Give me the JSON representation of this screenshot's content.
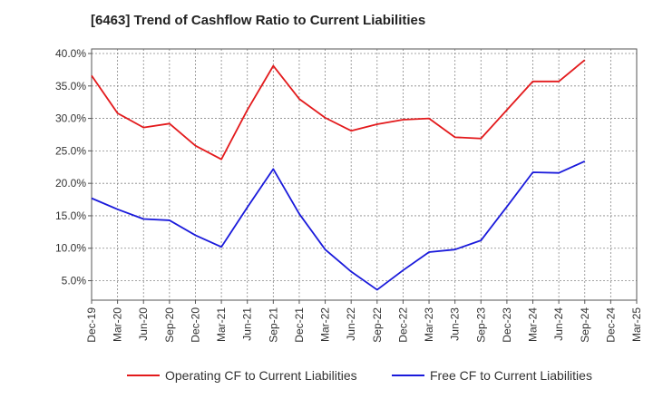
{
  "chart_data": {
    "type": "line",
    "title": "[6463]  Trend of Cashflow Ratio to Current Liabilities",
    "xlabel": "",
    "ylabel": "",
    "categories": [
      "Dec-19",
      "Mar-20",
      "Jun-20",
      "Sep-20",
      "Dec-20",
      "Mar-21",
      "Jun-21",
      "Sep-21",
      "Dec-21",
      "Mar-22",
      "Jun-22",
      "Sep-22",
      "Dec-22",
      "Mar-23",
      "Jun-23",
      "Sep-23",
      "Dec-23",
      "Mar-24",
      "Jun-24",
      "Sep-24",
      "Dec-24",
      "Mar-25"
    ],
    "ylim": [
      2.0,
      40.7
    ],
    "yticks": [
      5.0,
      10.0,
      15.0,
      20.0,
      25.0,
      30.0,
      35.0,
      40.0
    ],
    "ytick_labels": [
      "5.0%",
      "10.0%",
      "15.0%",
      "20.0%",
      "25.0%",
      "30.0%",
      "35.0%",
      "40.0%"
    ],
    "grid": true,
    "legend_position": "bottom",
    "series": [
      {
        "name": "Operating CF to Current Liabilities",
        "color": "#e31a1c",
        "values": [
          36.6,
          30.8,
          28.6,
          29.2,
          25.8,
          23.7,
          31.3,
          38.1,
          33.0,
          30.1,
          28.1,
          29.1,
          29.8,
          30.0,
          27.1,
          26.9,
          31.3,
          35.7,
          35.7,
          39.0,
          null,
          null
        ]
      },
      {
        "name": "Free CF to Current Liabilities",
        "color": "#1a1adb",
        "values": [
          17.7,
          16.0,
          14.5,
          14.3,
          12.0,
          10.2,
          16.3,
          22.2,
          15.3,
          9.8,
          6.4,
          3.6,
          6.6,
          9.4,
          9.8,
          11.2,
          16.4,
          21.7,
          21.6,
          23.4,
          null,
          null
        ]
      }
    ]
  }
}
